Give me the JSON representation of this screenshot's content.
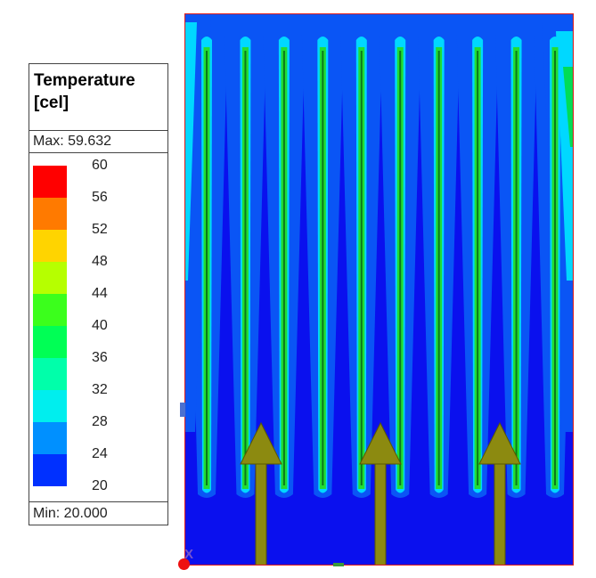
{
  "legend": {
    "title_line1": "Temperature",
    "title_line2": "[cel]",
    "max_label": "Max: 59.632",
    "min_label": "Min: 20.000",
    "ticks": [
      "60",
      "56",
      "52",
      "48",
      "44",
      "40",
      "36",
      "32",
      "28",
      "24",
      "20"
    ],
    "bands": [
      "#ff0000",
      "#ff7a00",
      "#ffd400",
      "#b6ff00",
      "#3bff1c",
      "#00ff55",
      "#00ffaa",
      "#00eeee",
      "#0090ff",
      "#0030ff"
    ]
  },
  "plot": {
    "base_color": "#0a10ee",
    "field_color": "#0a55f5",
    "halo_color": "#00d8ff",
    "fin_color": "#22dd33",
    "edge_color": "#00dd55",
    "arrow_color": "#8c8a10",
    "frame_color": "#dd2222",
    "fin_count": 10,
    "arrow_count": 3
  },
  "triad": {
    "x_label": "X"
  }
}
